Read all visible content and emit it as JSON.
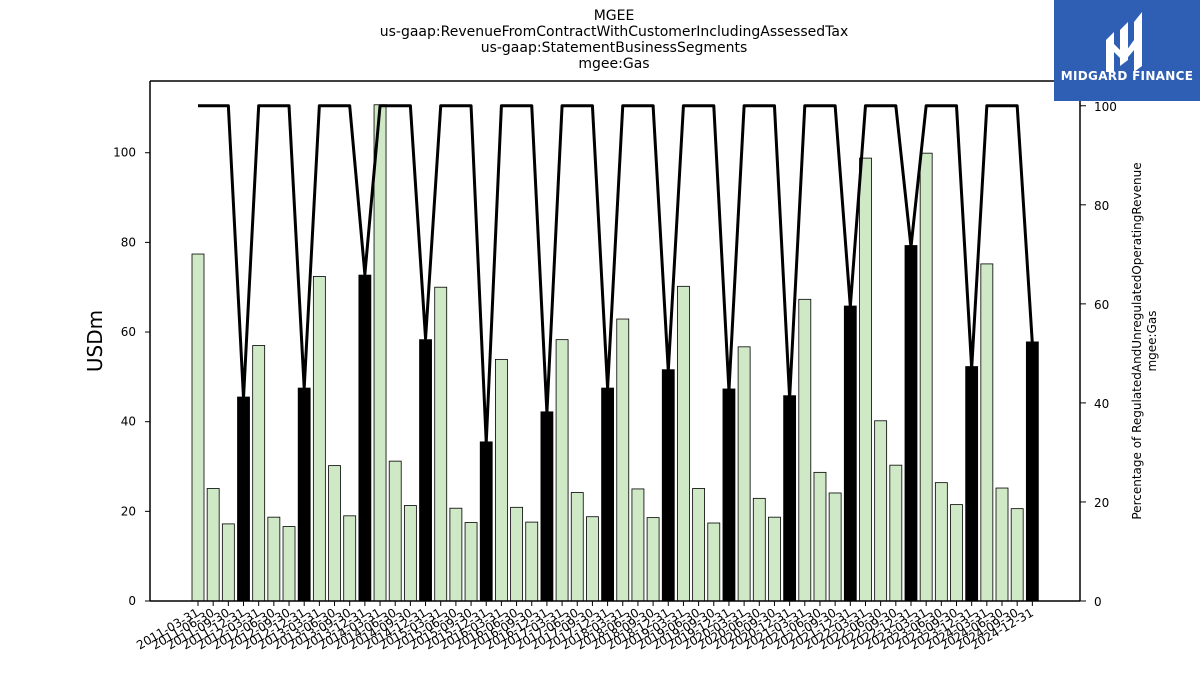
{
  "chart_data": {
    "type": "bar",
    "title": [
      "MGEE",
      "us-gaap:RevenueFromContractWithCustomerIncludingAssessedTax",
      "us-gaap:StatementBusinessSegments",
      "mgee:Gas"
    ],
    "ylabel": "USDm",
    "y2label": [
      "Percentage of RegulatedAndUnregulatedOperatingRevenue",
      "mgee:Gas"
    ],
    "ylim": [
      0,
      116
    ],
    "y2lim": [
      0,
      105
    ],
    "yticks": [
      0,
      20,
      40,
      60,
      80,
      100
    ],
    "y2ticks": [
      0,
      20,
      40,
      60,
      80,
      100
    ],
    "categories": [
      "2011-03-31",
      "2011-06-30",
      "2011-09-30",
      "2011-12-31",
      "2012-03-31",
      "2012-06-30",
      "2012-09-30",
      "2012-12-31",
      "2013-03-31",
      "2013-06-30",
      "2013-09-30",
      "2013-12-31",
      "2014-03-31",
      "2014-06-30",
      "2014-09-30",
      "2014-12-31",
      "2015-03-31",
      "2015-06-30",
      "2015-09-30",
      "2015-12-31",
      "2016-03-31",
      "2016-06-30",
      "2016-09-30",
      "2016-12-31",
      "2017-03-31",
      "2017-06-30",
      "2017-09-30",
      "2017-12-31",
      "2018-03-31",
      "2018-06-30",
      "2018-09-30",
      "2018-12-31",
      "2019-03-31",
      "2019-06-30",
      "2019-09-30",
      "2019-12-31",
      "2020-03-31",
      "2020-06-30",
      "2020-09-30",
      "2020-12-31",
      "2021-03-31",
      "2021-06-30",
      "2021-09-30",
      "2021-12-31",
      "2022-03-31",
      "2022-06-30",
      "2022-09-30",
      "2022-12-31",
      "2023-03-31",
      "2023-06-30",
      "2023-09-30",
      "2023-12-31",
      "2024-03-31",
      "2024-06-30",
      "2024-09-30",
      "2024-12-31"
    ],
    "series": [
      {
        "kind": "bar",
        "axis": "left",
        "values": [
          77.4,
          25.1,
          17.2,
          45.5,
          57.0,
          18.7,
          16.6,
          47.5,
          72.4,
          30.2,
          19.0,
          72.7,
          110.7,
          31.2,
          21.3,
          58.3,
          70.0,
          20.7,
          17.5,
          35.5,
          53.9,
          20.9,
          17.6,
          42.2,
          58.3,
          24.2,
          18.8,
          47.5,
          62.9,
          25.0,
          18.6,
          51.6,
          70.2,
          25.1,
          17.4,
          47.3,
          56.7,
          22.9,
          18.7,
          45.8,
          67.3,
          28.7,
          24.1,
          65.8,
          98.8,
          40.2,
          30.3,
          79.3,
          99.9,
          26.4,
          21.5,
          52.3,
          75.2,
          25.2,
          20.6,
          57.8
        ],
        "highlight": [
          false,
          false,
          false,
          true,
          false,
          false,
          false,
          true,
          false,
          false,
          false,
          true,
          false,
          false,
          false,
          true,
          false,
          false,
          false,
          true,
          false,
          false,
          false,
          true,
          false,
          false,
          false,
          true,
          false,
          false,
          false,
          true,
          false,
          false,
          false,
          true,
          false,
          false,
          false,
          true,
          false,
          false,
          false,
          true,
          false,
          false,
          false,
          true,
          false,
          false,
          false,
          true,
          false,
          false,
          false,
          true
        ],
        "bar_color": "#cfe8c5",
        "highlight_color": "#000000",
        "edge_color": "#000000"
      },
      {
        "kind": "line",
        "axis": "right",
        "values": [
          100,
          100,
          100,
          41,
          100,
          100,
          100,
          43,
          100,
          100,
          100,
          66,
          100,
          100,
          100,
          53,
          100,
          100,
          100,
          32,
          100,
          100,
          100,
          38,
          100,
          100,
          100,
          43,
          100,
          100,
          100,
          46.5,
          100,
          100,
          100,
          42.5,
          100,
          100,
          100,
          41,
          100,
          100,
          100,
          59.5,
          100,
          100,
          100,
          71.5,
          100,
          100,
          100,
          47,
          100,
          100,
          100,
          52
        ],
        "color": "#000000"
      }
    ],
    "grid": false,
    "legend": "none"
  },
  "logo": {
    "brand": "MIDGARD FINANCE",
    "background": "#2f5eb5",
    "icon": "midgard-m-icon"
  }
}
